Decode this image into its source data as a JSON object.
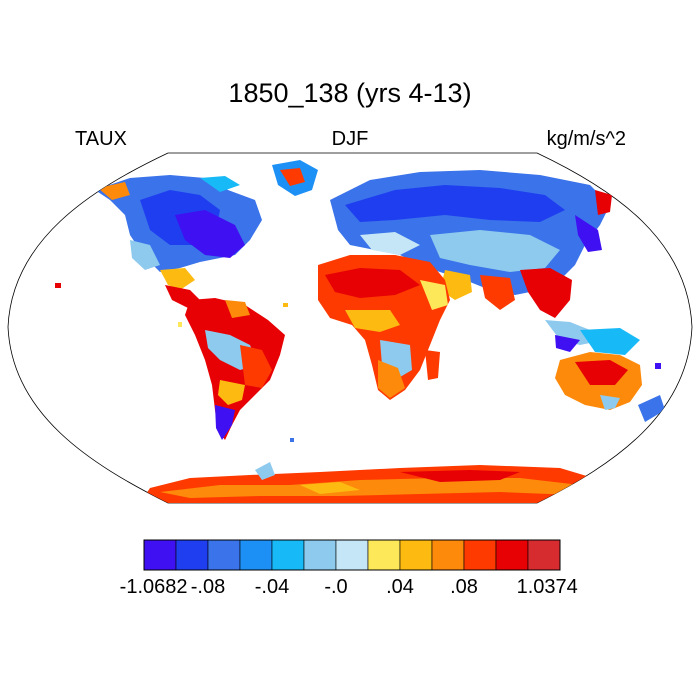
{
  "title": "1850_138 (yrs 4-13)",
  "left_label": "TAUX",
  "center_label": "DJF",
  "right_label": "kg/m/s^2",
  "colorbar": {
    "colors": [
      "#3f10f2",
      "#1f3ef0",
      "#3a73ea",
      "#1d90f5",
      "#18b9f7",
      "#8dcaee",
      "#c4e6f6",
      "#fde85a",
      "#fdbb12",
      "#fd8a0b",
      "#fe3a00",
      "#e70004",
      "#d62c2f"
    ],
    "labels": [
      "-1.0682",
      "-.08",
      "-.04",
      "-.0",
      ".04",
      ".08",
      "1.0374"
    ]
  },
  "colors": {
    "strong_negative": "#3f10f2",
    "negative": "#1d90f5",
    "weak_negative": "#8dcaee",
    "weak_positive": "#fde85a",
    "positive": "#fd8a0b",
    "strong_positive": "#e70004"
  }
}
